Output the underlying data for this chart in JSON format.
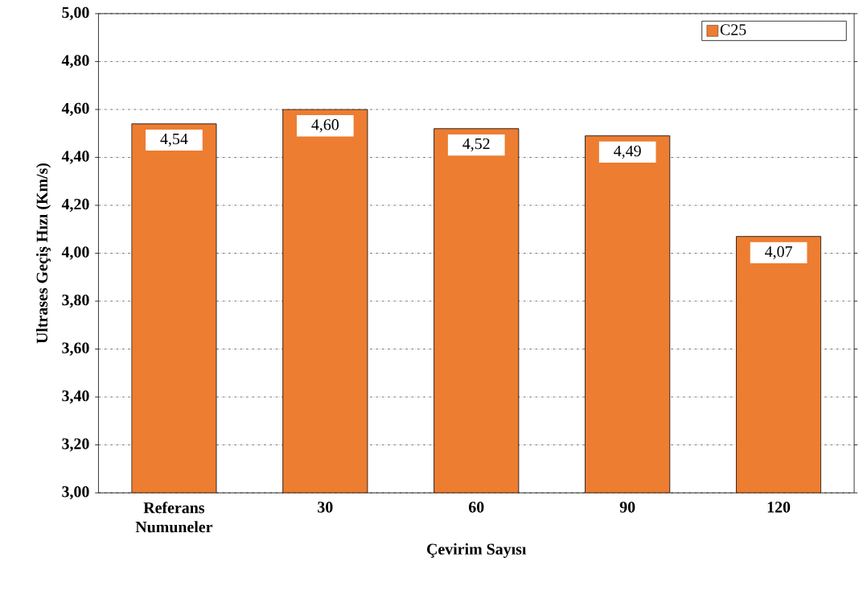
{
  "chart_data": {
    "type": "bar",
    "categories": [
      "Referans Numuneler",
      "30",
      "60",
      "90",
      "120"
    ],
    "xlabel": "Çevirim Sayısı",
    "ylabel": "Ultrases Geçiş Hızı (Km/s)",
    "series": [
      {
        "name": "C25",
        "color": "#ED7D31",
        "values": [
          4.54,
          4.6,
          4.52,
          4.49,
          4.07
        ],
        "value_labels": [
          "4,54",
          "4,60",
          "4,52",
          "4,49",
          "4,07"
        ]
      }
    ],
    "ylim": [
      3,
      5
    ],
    "yticks": [
      {
        "value": 3,
        "label": "3,00"
      },
      {
        "value": 3.2,
        "label": "3,20"
      },
      {
        "value": 3.4,
        "label": "3,40"
      },
      {
        "value": 3.6,
        "label": "3,60"
      },
      {
        "value": 3.8,
        "label": "3,80"
      },
      {
        "value": 4,
        "label": "4,00"
      },
      {
        "value": 4.2,
        "label": "4,20"
      },
      {
        "value": 4.4,
        "label": "4,40"
      },
      {
        "value": 4.6,
        "label": "4,60"
      },
      {
        "value": 4.8,
        "label": "4,80"
      },
      {
        "value": 5,
        "label": "5,00"
      }
    ],
    "grid": "y",
    "legend": "top right"
  }
}
